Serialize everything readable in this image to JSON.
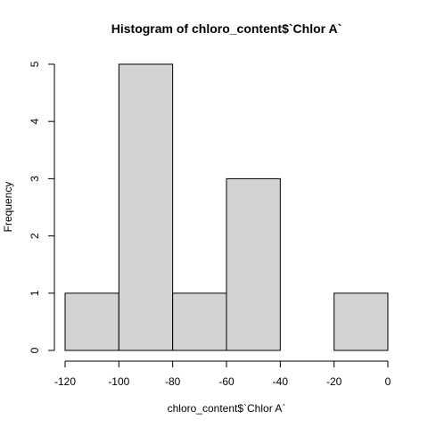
{
  "chart_data": {
    "type": "bar",
    "title": "Histogram of chloro_content$`Chlor A`",
    "xlabel": "chloro_content$`Chlor A`",
    "ylabel": "Frequency",
    "bins": [
      {
        "start": -120,
        "end": -100,
        "count": 1
      },
      {
        "start": -100,
        "end": -80,
        "count": 5
      },
      {
        "start": -80,
        "end": -60,
        "count": 1
      },
      {
        "start": -60,
        "end": -40,
        "count": 3
      },
      {
        "start": -40,
        "end": -20,
        "count": 0
      },
      {
        "start": -20,
        "end": 0,
        "count": 1
      }
    ],
    "xlim": [
      -120,
      0
    ],
    "ylim": [
      0,
      5
    ],
    "xticks": [
      -120,
      -100,
      -80,
      -60,
      -40,
      -20,
      0
    ],
    "yticks": [
      0,
      1,
      2,
      3,
      4,
      5
    ],
    "bar_color": "#d3d3d3",
    "grid": false,
    "legend": "none"
  }
}
